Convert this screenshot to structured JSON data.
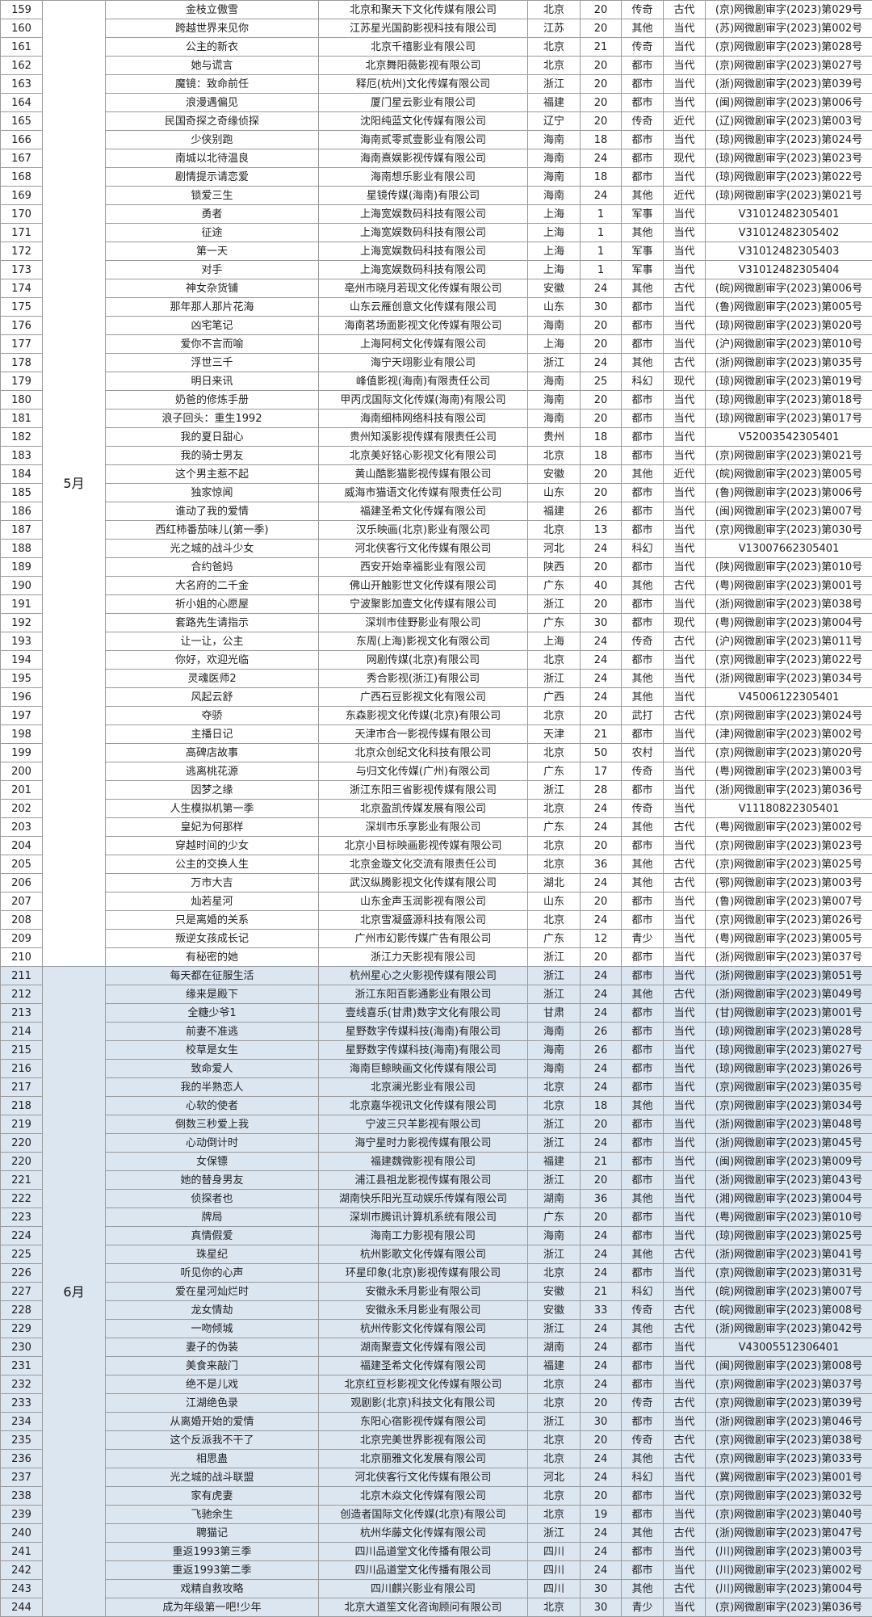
{
  "colors": {
    "may_bg": "#ffffff",
    "june_bg": "#dce6f1",
    "border": "#9a9a9a"
  },
  "groups": [
    {
      "month": "5月",
      "rows": [
        [
          "159",
          "金枝立傲雪",
          "北京和聚天下文化传媒有限公司",
          "北京",
          "20",
          "传奇",
          "古代",
          "(京)网微剧审字(2023)第029号"
        ],
        [
          "160",
          "跨越世界来见你",
          "江苏星光国韵影视科技有限公司",
          "江苏",
          "20",
          "其他",
          "当代",
          "(苏)网微剧审字(2023)第002号"
        ],
        [
          "161",
          "公主的新衣",
          "北京千禧影业有限公司",
          "北京",
          "21",
          "传奇",
          "当代",
          "(京)网微剧审字(2023)第028号"
        ],
        [
          "162",
          "她与谎言",
          "北京舞阳薇影视有限公司",
          "北京",
          "20",
          "都市",
          "当代",
          "(京)网微剧审字(2023)第027号"
        ],
        [
          "163",
          "魔镜：致命前任",
          "释厄(杭州)文化传媒有限公司",
          "浙江",
          "20",
          "都市",
          "当代",
          "(浙)网微剧审字(2023)第039号"
        ],
        [
          "164",
          "浪漫遇偏见",
          "厦门星云影业有限公司",
          "福建",
          "20",
          "都市",
          "当代",
          "(闽)网微剧审字(2023)第006号"
        ],
        [
          "165",
          "民国奇探之奇缘侦探",
          "沈阳纯蓝文化传媒有限公司",
          "辽宁",
          "20",
          "传奇",
          "近代",
          "(辽)网微剧审字(2023)第003号"
        ],
        [
          "166",
          "少侠别跑",
          "海南贰零贰壹影业有限公司",
          "海南",
          "18",
          "都市",
          "当代",
          "(琼)网微剧审字(2023)第024号"
        ],
        [
          "167",
          "南城以北待温良",
          "海南熹娱影视传媒有限公司",
          "海南",
          "24",
          "都市",
          "现代",
          "(琼)网微剧审字(2023)第023号"
        ],
        [
          "168",
          "剧情提示请恋爱",
          "海南想乐影业有限公司",
          "海南",
          "18",
          "都市",
          "当代",
          "(琼)网微剧审字(2023)第022号"
        ],
        [
          "169",
          "锁爱三生",
          "星镜传媒(海南)有限公司",
          "海南",
          "24",
          "其他",
          "近代",
          "(琼)网微剧审字(2023)第021号"
        ],
        [
          "170",
          "勇者",
          "上海宽娱数码科技有限公司",
          "上海",
          "1",
          "军事",
          "当代",
          "V31012482305401"
        ],
        [
          "171",
          "征途",
          "上海宽娱数码科技有限公司",
          "上海",
          "1",
          "其他",
          "当代",
          "V31012482305402"
        ],
        [
          "172",
          "第一天",
          "上海宽娱数码科技有限公司",
          "上海",
          "1",
          "军事",
          "当代",
          "V31012482305403"
        ],
        [
          "173",
          "对手",
          "上海宽娱数码科技有限公司",
          "上海",
          "1",
          "军事",
          "当代",
          "V31012482305404"
        ],
        [
          "174",
          "神女杂货铺",
          "亳州市晓月若现文化传媒有限公司",
          "安徽",
          "24",
          "其他",
          "古代",
          "(皖)网微剧审字(2023)第006号"
        ],
        [
          "175",
          "那年那人那片花海",
          "山东云雁创意文化传媒有限公司",
          "山东",
          "30",
          "都市",
          "当代",
          "(鲁)网微剧审字(2023)第005号"
        ],
        [
          "176",
          "凶宅笔记",
          "海南茗场面影视文化传媒有限公司",
          "海南",
          "20",
          "都市",
          "当代",
          "(琼)网微剧审字(2023)第020号"
        ],
        [
          "177",
          "爱你不言而喻",
          "上海阿柯文化传媒有限公司",
          "上海",
          "20",
          "都市",
          "当代",
          "(沪)网微剧审字(2023)第010号"
        ],
        [
          "178",
          "浮世三千",
          "海宁天翊影业有限公司",
          "浙江",
          "24",
          "其他",
          "古代",
          "(浙)网微剧审字(2023)第035号"
        ],
        [
          "179",
          "明日来讯",
          "峰值影视(海南)有限责任公司",
          "海南",
          "25",
          "科幻",
          "现代",
          "(琼)网微剧审字(2023)第019号"
        ],
        [
          "180",
          "奶爸的修炼手册",
          "甲丙戊国际文化传媒(海南)有限公司",
          "海南",
          "20",
          "都市",
          "当代",
          "(琼)网微剧审字(2023)第018号"
        ],
        [
          "181",
          "浪子回头：重生1992",
          "海南细柿网络科技有限公司",
          "海南",
          "20",
          "都市",
          "当代",
          "(琼)网微剧审字(2023)第017号"
        ],
        [
          "182",
          "我的夏日甜心",
          "贵州知溪影视传媒有限责任公司",
          "贵州",
          "18",
          "都市",
          "当代",
          "V52003542305401"
        ],
        [
          "183",
          "我的骑士男友",
          "北京美好铭心影视文化有限公司",
          "北京",
          "18",
          "都市",
          "当代",
          "(京)网微剧审字(2023)第021号"
        ],
        [
          "184",
          "这个男主惹不起",
          "黄山酷影猫影视传媒有限公司",
          "安徽",
          "20",
          "其他",
          "近代",
          "(皖)网微剧审字(2023)第005号"
        ],
        [
          "185",
          "独家惊闻",
          "威海市猫语文化传媒有限责任公司",
          "山东",
          "20",
          "都市",
          "当代",
          "(鲁)网微剧审字(2023)第006号"
        ],
        [
          "186",
          "谁动了我的爱情",
          "福建圣希文化传媒有限公司",
          "福建",
          "26",
          "都市",
          "当代",
          "(闽)网微剧审字(2023)第007号"
        ],
        [
          "187",
          "西红柿番茄味儿(第一季)",
          "汉乐映画(北京)影业有限公司",
          "北京",
          "13",
          "都市",
          "当代",
          "(京)网微剧审字(2023)第030号"
        ],
        [
          "188",
          "光之城的战斗少女",
          "河北侠客行文化传媒有限公司",
          "河北",
          "24",
          "科幻",
          "当代",
          "V13007662305401"
        ],
        [
          "189",
          "合约爸妈",
          "西安开始幸福影业有限公司",
          "陕西",
          "20",
          "都市",
          "当代",
          "(陕)网微剧审字(2023)第010号"
        ],
        [
          "190",
          "大名府的二千金",
          "佛山开触影世文化传媒有限公司",
          "广东",
          "40",
          "其他",
          "古代",
          "(粤)网微剧审字(2023)第001号"
        ],
        [
          "191",
          "祈小姐的心愿屋",
          "宁波聚影加壹文化传媒有限公司",
          "浙江",
          "20",
          "都市",
          "当代",
          "(浙)网微剧审字(2023)第038号"
        ],
        [
          "192",
          "套路先生请指示",
          "深圳市佳野影业有限公司",
          "广东",
          "30",
          "都市",
          "现代",
          "(粤)网微剧审字(2023)第004号"
        ],
        [
          "193",
          "让一让，公主",
          "东周(上海)影视文化有限公司",
          "上海",
          "24",
          "传奇",
          "古代",
          "(沪)网微剧审字(2023)第011号"
        ],
        [
          "194",
          "你好，欢迎光临",
          "网剧传媒(北京)有限公司",
          "北京",
          "24",
          "都市",
          "当代",
          "(京)网微剧审字(2023)第022号"
        ],
        [
          "195",
          "灵魂医师2",
          "秀合影视(浙江)有限公司",
          "浙江",
          "24",
          "其他",
          "当代",
          "(浙)网微剧审字(2023)第034号"
        ],
        [
          "196",
          "风起云舒",
          "广西石豆影视文化有限公司",
          "广西",
          "24",
          "其他",
          "当代",
          "V45006122305401"
        ],
        [
          "197",
          "夺骄",
          "东森影视文化传媒(北京)有限公司",
          "北京",
          "20",
          "武打",
          "古代",
          "(京)网微剧审字(2023)第024号"
        ],
        [
          "198",
          "主播日记",
          "天津市合一影视传媒有限公司",
          "天津",
          "21",
          "都市",
          "当代",
          "(津)网微剧审字(2023)第002号"
        ],
        [
          "199",
          "高碑店故事",
          "北京众创纪文化科技有限公司",
          "北京",
          "50",
          "农村",
          "当代",
          "(京)网微剧审字(2023)第020号"
        ],
        [
          "200",
          "逃离桃花源",
          "与归文化传媒(广州)有限公司",
          "广东",
          "17",
          "传奇",
          "当代",
          "(粤)网微剧审字(2023)第003号"
        ],
        [
          "201",
          "因梦之缘",
          "浙江东阳三省影视传媒有限公司",
          "浙江",
          "28",
          "都市",
          "当代",
          "(浙)网微剧审字(2023)第036号"
        ],
        [
          "202",
          "人生模拟机第一季",
          "北京盈凯传媒发展有限公司",
          "北京",
          "24",
          "传奇",
          "当代",
          "V11180822305401"
        ],
        [
          "203",
          "皇妃为何那样",
          "深圳市乐享影业有限公司",
          "广东",
          "24",
          "其他",
          "古代",
          "(粤)网微剧审字(2023)第002号"
        ],
        [
          "204",
          "穿越时间的少女",
          "北京小目标映画影视传媒有限公司",
          "北京",
          "20",
          "都市",
          "当代",
          "(京)网微剧审字(2023)第023号"
        ],
        [
          "205",
          "公主的交换人生",
          "北京金璇文化交流有限责任公司",
          "北京",
          "36",
          "其他",
          "古代",
          "(京)网微剧审字(2023)第025号"
        ],
        [
          "206",
          "万市大吉",
          "武汉纵腾影视文化传媒有限公司",
          "湖北",
          "24",
          "其他",
          "古代",
          "(鄂)网微剧审字(2023)第003号"
        ],
        [
          "207",
          "灿若星河",
          "山东金声玉润影视有限公司",
          "山东",
          "20",
          "都市",
          "当代",
          "(鲁)网微剧审字(2023)第007号"
        ],
        [
          "208",
          "只是离婚的关系",
          "北京雪凝盛源科技有限公司",
          "北京",
          "24",
          "都市",
          "当代",
          "(京)网微剧审字(2023)第026号"
        ],
        [
          "209",
          "叛逆女孩成长记",
          "广州市幻影传媒广告有限公司",
          "广东",
          "12",
          "青少",
          "当代",
          "(粤)网微剧审字(2023)第005号"
        ],
        [
          "210",
          "有秘密的她",
          "浙江力天影视有限公司",
          "浙江",
          "20",
          "都市",
          "当代",
          "(浙)网微剧审字(2023)第037号"
        ]
      ]
    },
    {
      "month": "6月",
      "rows": [
        [
          "211",
          "每天都在征服生活",
          "杭州星心之火影视传媒有限公司",
          "浙江",
          "24",
          "都市",
          "当代",
          "(浙)网微剧审字(2023)第051号"
        ],
        [
          "212",
          "缘来是殿下",
          "浙江东阳百影通影业有限公司",
          "浙江",
          "24",
          "其他",
          "古代",
          "(浙)网微剧审字(2023)第049号"
        ],
        [
          "213",
          "全糖少爷1",
          "壹线喜乐(甘肃)数字文化有限公司",
          "甘肃",
          "24",
          "都市",
          "当代",
          "(甘)网微剧审字(2023)第001号"
        ],
        [
          "214",
          "前妻不准逃",
          "星野数字传媒科技(海南)有限公司",
          "海南",
          "26",
          "都市",
          "当代",
          "(琼)网微剧审字(2023)第028号"
        ],
        [
          "215",
          "校草是女生",
          "星野数字传媒科技(海南)有限公司",
          "海南",
          "26",
          "都市",
          "当代",
          "(琼)网微剧审字(2023)第027号"
        ],
        [
          "216",
          "致命爱人",
          "海南巨鲸映画文化传媒有限公司",
          "海南",
          "24",
          "都市",
          "当代",
          "(琼)网微剧审字(2023)第026号"
        ],
        [
          "217",
          "我的半熟恋人",
          "北京澜光影业有限公司",
          "北京",
          "24",
          "都市",
          "当代",
          "(京)网微剧审字(2023)第035号"
        ],
        [
          "218",
          "心软的使者",
          "北京嘉华视讯文化传媒有限公司",
          "北京",
          "18",
          "其他",
          "当代",
          "(京)网微剧审字(2023)第034号"
        ],
        [
          "219",
          "倒数三秒爱上我",
          "宁波三只羊影视有限公司",
          "浙江",
          "20",
          "都市",
          "当代",
          "(浙)网微剧审字(2023)第048号"
        ],
        [
          "220",
          "心动倒计时",
          "海宁星时力影视传媒有限公司",
          "浙江",
          "24",
          "都市",
          "当代",
          "(浙)网微剧审字(2023)第045号"
        ],
        [
          "220",
          "女保镖",
          "福建魏微影视有限公司",
          "福建",
          "21",
          "都市",
          "当代",
          "(闽)网微剧审字(2023)第009号"
        ],
        [
          "221",
          "她的替身男友",
          "浦江县祖龙影视传媒有限公司",
          "浙江",
          "20",
          "都市",
          "当代",
          "(浙)网微剧审字(2023)第043号"
        ],
        [
          "222",
          "侦探者也",
          "湖南快乐阳光互动娱乐传媒有限公司",
          "湖南",
          "36",
          "其他",
          "当代",
          "(湘)网微剧审字(2023)第004号"
        ],
        [
          "223",
          "牌局",
          "深圳市腾讯计算机系统有限公司",
          "广东",
          "20",
          "都市",
          "当代",
          "(粤)网微剧审字(2023)第010号"
        ],
        [
          "224",
          "真情假爱",
          "海南工力影视有限公司",
          "海南",
          "24",
          "都市",
          "当代",
          "(琼)网微剧审字(2023)第025号"
        ],
        [
          "225",
          "珠星纪",
          "杭州影歌文化传媒有限公司",
          "浙江",
          "24",
          "其他",
          "古代",
          "(浙)网微剧审字(2023)第041号"
        ],
        [
          "226",
          "听见你的心声",
          "环星印象(北京)影视传媒有限公司",
          "北京",
          "24",
          "都市",
          "当代",
          "(京)网微剧审字(2023)第031号"
        ],
        [
          "227",
          "爱在星河灿烂时",
          "安徽永禾月影业有限公司",
          "安徽",
          "21",
          "科幻",
          "当代",
          "(皖)网微剧审字(2023)第007号"
        ],
        [
          "228",
          "龙女情劫",
          "安徽永禾月影业有限公司",
          "安徽",
          "33",
          "传奇",
          "古代",
          "(皖)网微剧审字(2023)第008号"
        ],
        [
          "229",
          "一吻倾城",
          "杭州传影文化传媒有限公司",
          "浙江",
          "24",
          "其他",
          "古代",
          "(浙)网微剧审字(2023)第042号"
        ],
        [
          "230",
          "妻子的伪装",
          "湖南聚壹文化传媒有限公司",
          "湖南",
          "24",
          "都市",
          "当代",
          "V43005512306401"
        ],
        [
          "231",
          "美食来敲门",
          "福建圣希文化传媒有限公司",
          "福建",
          "24",
          "都市",
          "当代",
          "(闽)网微剧审字(2023)第008号"
        ],
        [
          "232",
          "绝不是儿戏",
          "北京红豆杉影视文化传媒有限公司",
          "北京",
          "24",
          "都市",
          "当代",
          "(京)网微剧审字(2023)第037号"
        ],
        [
          "233",
          "江湖绝色录",
          "观剧影(北京)科技文化有限公司",
          "北京",
          "20",
          "传奇",
          "古代",
          "(京)网微剧审字(2023)第039号"
        ],
        [
          "234",
          "从离婚开始的爱情",
          "东阳心宿影视传媒有限公司",
          "浙江",
          "30",
          "都市",
          "当代",
          "(浙)网微剧审字(2023)第046号"
        ],
        [
          "235",
          "这个反派我不干了",
          "北京完美世界影视有限公司",
          "北京",
          "20",
          "传奇",
          "古代",
          "(京)网微剧审字(2023)第038号"
        ],
        [
          "236",
          "相思蛊",
          "北京丽雅文化发展有限公司",
          "北京",
          "24",
          "其他",
          "古代",
          "(京)网微剧审字(2023)第033号"
        ],
        [
          "237",
          "光之城的战斗联盟",
          "河北侠客行文化传媒有限公司",
          "河北",
          "24",
          "科幻",
          "当代",
          "(冀)网微剧审字(2023)第001号"
        ],
        [
          "238",
          "家有虎妻",
          "北京木焱文化传媒有限公司",
          "北京",
          "20",
          "都市",
          "当代",
          "(京)网微剧审字(2023)第032号"
        ],
        [
          "239",
          "飞驰余生",
          "创造者国际文化传媒(北京)有限公司",
          "北京",
          "19",
          "都市",
          "当代",
          "(京)网微剧审字(2023)第040号"
        ],
        [
          "240",
          "聘猫记",
          "杭州华藤文化传媒有限公司",
          "浙江",
          "24",
          "其他",
          "古代",
          "(浙)网微剧审字(2023)第047号"
        ],
        [
          "241",
          "重返1993第三季",
          "四川品道堂文化传播有限公司",
          "四川",
          "24",
          "都市",
          "当代",
          "(川)网微剧审字(2023)第003号"
        ],
        [
          "242",
          "重返1993第二季",
          "四川品道堂文化传播有限公司",
          "四川",
          "24",
          "都市",
          "当代",
          "(川)网微剧审字(2023)第002号"
        ],
        [
          "243",
          "戏精自救攻略",
          "四川麒兴影业有限公司",
          "四川",
          "30",
          "其他",
          "古代",
          "(川)网微剧审字(2023)第004号"
        ],
        [
          "244",
          "成为年级第一吧!少年",
          "北京大道笙文化咨询顾问有限公司",
          "北京",
          "30",
          "青少",
          "当代",
          "(京)网微剧审字(2023)第036号"
        ]
      ]
    }
  ]
}
